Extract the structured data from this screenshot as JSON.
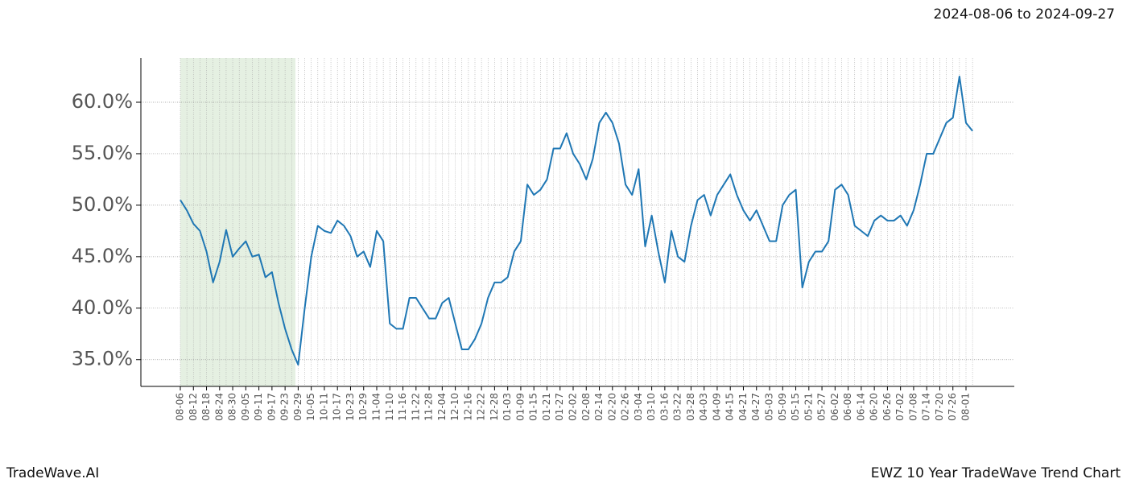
{
  "header": "2024-08-06 to 2024-09-27",
  "footer_left": "TradeWave.AI",
  "footer_right": "EWZ 10 Year TradeWave Trend Chart",
  "chart_data": {
    "type": "line",
    "categories": [
      "08-06",
      null,
      "08-12",
      null,
      "08-18",
      null,
      "08-24",
      null,
      "08-30",
      null,
      "09-05",
      null,
      "09-11",
      null,
      "09-17",
      null,
      "09-23",
      null,
      "09-29",
      null,
      "10-05",
      null,
      "10-11",
      null,
      "10-17",
      null,
      "10-23",
      null,
      "10-29",
      null,
      "11-04",
      null,
      "11-10",
      null,
      "11-16",
      null,
      "11-22",
      null,
      "11-28",
      null,
      "12-04",
      null,
      "12-10",
      null,
      "12-16",
      null,
      "12-22",
      null,
      "12-28",
      null,
      "01-03",
      null,
      "01-09",
      null,
      "01-15",
      null,
      "01-21",
      null,
      "01-27",
      null,
      "02-02",
      null,
      "02-08",
      null,
      "02-14",
      null,
      "02-20",
      null,
      "02-26",
      null,
      "03-04",
      null,
      "03-10",
      null,
      "03-16",
      null,
      "03-22",
      null,
      "03-28",
      null,
      "04-03",
      null,
      "04-09",
      null,
      "04-15",
      null,
      "04-21",
      null,
      "04-27",
      null,
      "05-03",
      null,
      "05-09",
      null,
      "05-15",
      null,
      "05-21",
      null,
      "05-27",
      null,
      "06-02",
      null,
      "06-08",
      null,
      "06-14",
      null,
      "06-20",
      null,
      "06-26",
      null,
      "07-02",
      null,
      "07-08",
      null,
      "07-14",
      null,
      "07-20",
      null,
      "07-26",
      null,
      "08-01",
      null
    ],
    "series": [
      {
        "color": "#1f77b4",
        "values": [
          50.5,
          49.5,
          48.2,
          47.5,
          45.5,
          42.5,
          44.5,
          47.6,
          45,
          45.8,
          46.5,
          45,
          45.2,
          43,
          43.5,
          40.5,
          38,
          36,
          34.5,
          40,
          45,
          48,
          47.5,
          47.3,
          48.5,
          48,
          47,
          45,
          45.5,
          44,
          47.5,
          46.5,
          38.5,
          38,
          38,
          41,
          41,
          40,
          39,
          39,
          40.5,
          41,
          38.5,
          36,
          36,
          37,
          38.5,
          41,
          42.5,
          42.5,
          43,
          45.5,
          46.5,
          52,
          51,
          51.5,
          52.5,
          55.5,
          55.5,
          57,
          55,
          54,
          52.5,
          54.5,
          58,
          59,
          58,
          56,
          52,
          51,
          53.5,
          46,
          49,
          45.5,
          42.5,
          47.5,
          45,
          44.5,
          48,
          50.5,
          51,
          49,
          51,
          52,
          53,
          51,
          49.5,
          48.5,
          49.5,
          48,
          46.5,
          46.5,
          50,
          51,
          51.5,
          42,
          44.5,
          45.5,
          45.5,
          46.5,
          51.5,
          52,
          51,
          48,
          47.5,
          47,
          48.5,
          49,
          48.5,
          48.5,
          49,
          48,
          49.5,
          52,
          55,
          55,
          56.5,
          58,
          58.5,
          62.5,
          58,
          57.2
        ]
      }
    ],
    "ylim": [
      32.4,
      64.3
    ],
    "yticks": [
      {
        "value": 35,
        "label": "35.0%"
      },
      {
        "value": 40,
        "label": "40.0%"
      },
      {
        "value": 45,
        "label": "45.0%"
      },
      {
        "value": 50,
        "label": "50.0%"
      },
      {
        "value": 55,
        "label": "55.0%"
      },
      {
        "value": 60,
        "label": "60.0%"
      }
    ],
    "grid": true
  }
}
